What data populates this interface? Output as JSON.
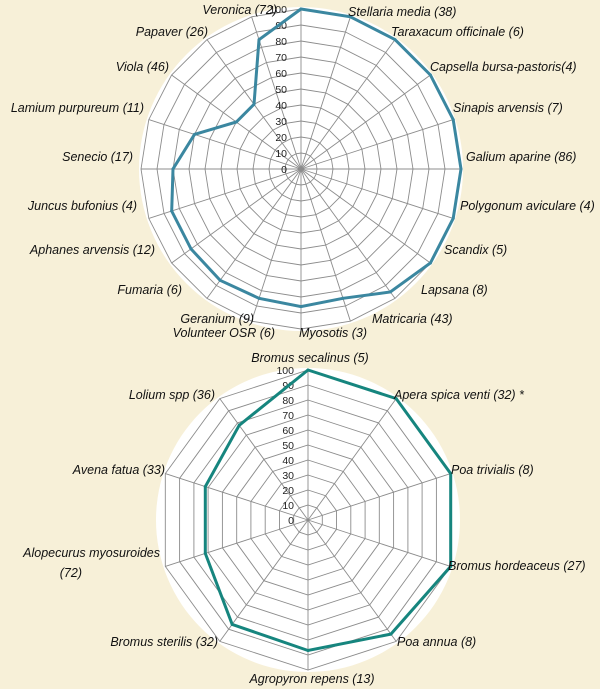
{
  "chart_data": [
    {
      "type": "radar",
      "id": "broadleaf",
      "categories": [
        "Stellaria media (38)",
        "Taraxacum officinale (6)",
        "Capsella bursa-pastoris(4)",
        "Sinapis arvensis (7)",
        "Galium aparine (86)",
        "Polygonum aviculare (4)",
        "Scandix (5)",
        "Lapsana (8)",
        "Matricaria (43)",
        "Myosotis (3)",
        "Volunteer OSR (6)",
        "Geranium (9)",
        "Fumaria (6)",
        "Aphanes arvensis (12)",
        "Juncus bufonius (4)",
        "Senecio (17)",
        "Lamium purpureum (11)",
        "Viola (46)",
        "Papaver (26)",
        "Veronica (72)"
      ],
      "values": [
        100,
        100,
        100,
        100,
        100,
        100,
        100,
        100,
        95,
        85,
        86,
        85,
        86,
        85,
        85,
        80,
        70,
        50,
        50,
        85
      ],
      "ylim": [
        0,
        100
      ],
      "ticks": [
        "0",
        "10",
        "20",
        "30",
        "40",
        "50",
        "60",
        "70",
        "80",
        "90",
        "100"
      ],
      "series_color": "#3B87A0",
      "grid": true
    },
    {
      "type": "radar",
      "id": "grass",
      "categories": [
        "Bromus secalinus (5)",
        "Apera spica venti  (32) *",
        "Poa trivialis (8)",
        "Bromus hordeaceus (27)",
        "Poa annua (8)",
        "Agropyron repens (13)",
        "Bromus sterilis (32)",
        "Alopecurus myosuroides (72)",
        "Avena fatua (33)",
        "Lolium  spp (36)"
      ],
      "values": [
        100,
        100,
        100,
        100,
        94,
        87,
        86,
        72,
        72,
        78
      ],
      "ylim": [
        0,
        100
      ],
      "ticks": [
        "0",
        "10",
        "20",
        "30",
        "40",
        "50",
        "60",
        "70",
        "80",
        "90",
        "100"
      ],
      "series_color": "#16857E",
      "grid": true
    }
  ]
}
